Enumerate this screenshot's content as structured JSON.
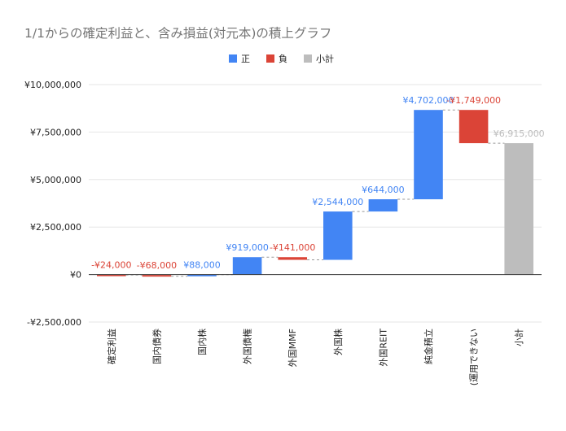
{
  "chart_data": {
    "type": "bar",
    "subtype": "waterfall",
    "title": "1/1からの確定利益と、含み損益(対元本)の積上グラフ",
    "legend": {
      "position": "top",
      "items": [
        {
          "name": "正",
          "color": "#4285f4"
        },
        {
          "name": "負",
          "color": "#db4437"
        },
        {
          "name": "小計",
          "color": "#bdbdbd"
        }
      ]
    },
    "categories": [
      "確定利益",
      "国内債券",
      "国内株",
      "外国債権",
      "外国MMF",
      "外国株",
      "外国REIT",
      "純金積立",
      "(運用できない",
      "小計"
    ],
    "values": [
      -24000,
      -68000,
      88000,
      919000,
      -141000,
      2544000,
      644000,
      4702000,
      -1749000,
      6915000
    ],
    "kinds": [
      "neg",
      "neg",
      "pos",
      "pos",
      "neg",
      "pos",
      "pos",
      "pos",
      "neg",
      "subtotal"
    ],
    "data_labels": [
      "-¥24,000",
      "-¥68,000",
      "¥88,000",
      "¥919,000",
      "-¥141,000",
      "¥2,544,000",
      "¥644,000",
      "¥4,702,000",
      "-¥1,749,000",
      "¥6,915,000"
    ],
    "y_ticks": [
      {
        "value": 10000000,
        "label": "¥10,000,000"
      },
      {
        "value": 7500000,
        "label": "¥7,500,000"
      },
      {
        "value": 5000000,
        "label": "¥5,000,000"
      },
      {
        "value": 2500000,
        "label": "¥2,500,000"
      },
      {
        "value": 0,
        "label": "¥0"
      },
      {
        "value": -2500000,
        "label": "-¥2,500,000"
      }
    ],
    "ylim": [
      -2500000,
      10000000
    ],
    "grid": true,
    "colors": {
      "pos": "#4285f4",
      "neg": "#db4437",
      "subtotal": "#bdbdbd",
      "grid": "#e6e6e6",
      "axis": "#333333",
      "title": "#757575",
      "text": "#222222",
      "connector": "#999999"
    }
  }
}
